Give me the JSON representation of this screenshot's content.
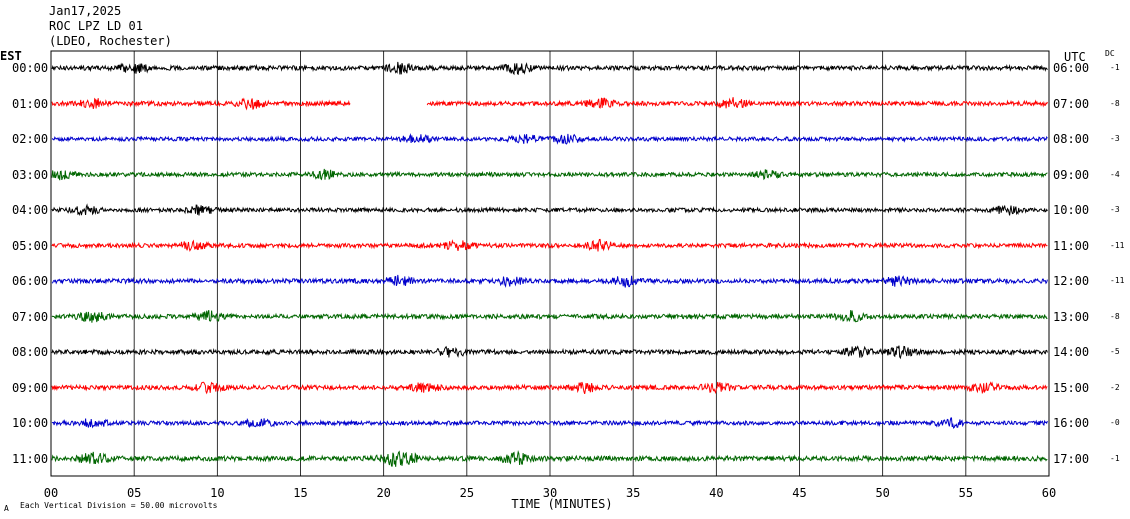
{
  "header": {
    "date": "Jan17,2025",
    "station": "ROC LPZ LD 01",
    "network": "(LDEO, Rochester)"
  },
  "labels": {
    "left_zone": "EST",
    "right_zone": "UTC",
    "dc": "DC",
    "footer_note": "Each Vertical Division =   50.00 microvolts",
    "corner_mark": "A"
  },
  "chart_data": {
    "type": "line",
    "title": "",
    "xlabel": "TIME (MINUTES)",
    "x_ticks": [
      "00",
      "05",
      "10",
      "15",
      "20",
      "25",
      "30",
      "35",
      "40",
      "45",
      "50",
      "55",
      "60"
    ],
    "xlim": [
      0,
      60
    ],
    "grid": true,
    "series": [
      {
        "left_label": "00:00",
        "right_label": "06:00",
        "dc": "-1",
        "color": "#000000",
        "amp": 1.0,
        "gaps": [],
        "bursts": [
          5,
          21,
          28
        ]
      },
      {
        "left_label": "01:00",
        "right_label": "07:00",
        "dc": "-8",
        "color": "#ff0000",
        "amp": 1.0,
        "gaps": [
          [
            18,
            22.6
          ]
        ],
        "bursts": [
          2.5,
          12,
          33,
          41
        ]
      },
      {
        "left_label": "02:00",
        "right_label": "08:00",
        "dc": "-3",
        "color": "#0000cc",
        "amp": 0.9,
        "gaps": [],
        "bursts": [
          22,
          28.5,
          31
        ]
      },
      {
        "left_label": "03:00",
        "right_label": "09:00",
        "dc": "-4",
        "color": "#006600",
        "amp": 0.9,
        "gaps": [],
        "bursts": [
          0.5,
          16.5,
          43
        ]
      },
      {
        "left_label": "04:00",
        "right_label": "10:00",
        "dc": "-3",
        "color": "#000000",
        "amp": 0.9,
        "gaps": [],
        "bursts": [
          2,
          9,
          57.5
        ]
      },
      {
        "left_label": "05:00",
        "right_label": "11:00",
        "dc": "-11",
        "color": "#ff0000",
        "amp": 0.95,
        "gaps": [],
        "bursts": [
          8.5,
          24.5,
          33
        ]
      },
      {
        "left_label": "06:00",
        "right_label": "12:00",
        "dc": "-11",
        "color": "#0000cc",
        "amp": 1.0,
        "gaps": [],
        "bursts": [
          21,
          27.5,
          34.5,
          51
        ]
      },
      {
        "left_label": "07:00",
        "right_label": "13:00",
        "dc": "-8",
        "color": "#006600",
        "amp": 1.0,
        "gaps": [],
        "bursts": [
          2.5,
          9.5,
          48
        ]
      },
      {
        "left_label": "08:00",
        "right_label": "14:00",
        "dc": "-5",
        "color": "#000000",
        "amp": 1.0,
        "gaps": [],
        "bursts": [
          24,
          48.5,
          51
        ]
      },
      {
        "left_label": "09:00",
        "right_label": "15:00",
        "dc": "-2",
        "color": "#ff0000",
        "amp": 1.0,
        "gaps": [],
        "bursts": [
          9.5,
          22.5,
          32,
          40,
          56
        ]
      },
      {
        "left_label": "10:00",
        "right_label": "16:00",
        "dc": "-0",
        "color": "#0000cc",
        "amp": 0.9,
        "gaps": [],
        "bursts": [
          2.5,
          12.5,
          54
        ]
      },
      {
        "left_label": "11:00",
        "right_label": "17:00",
        "dc": "-1",
        "color": "#006600",
        "amp": 1.1,
        "gaps": [],
        "bursts": [
          2.5,
          20.5,
          21.3,
          28
        ]
      }
    ]
  }
}
